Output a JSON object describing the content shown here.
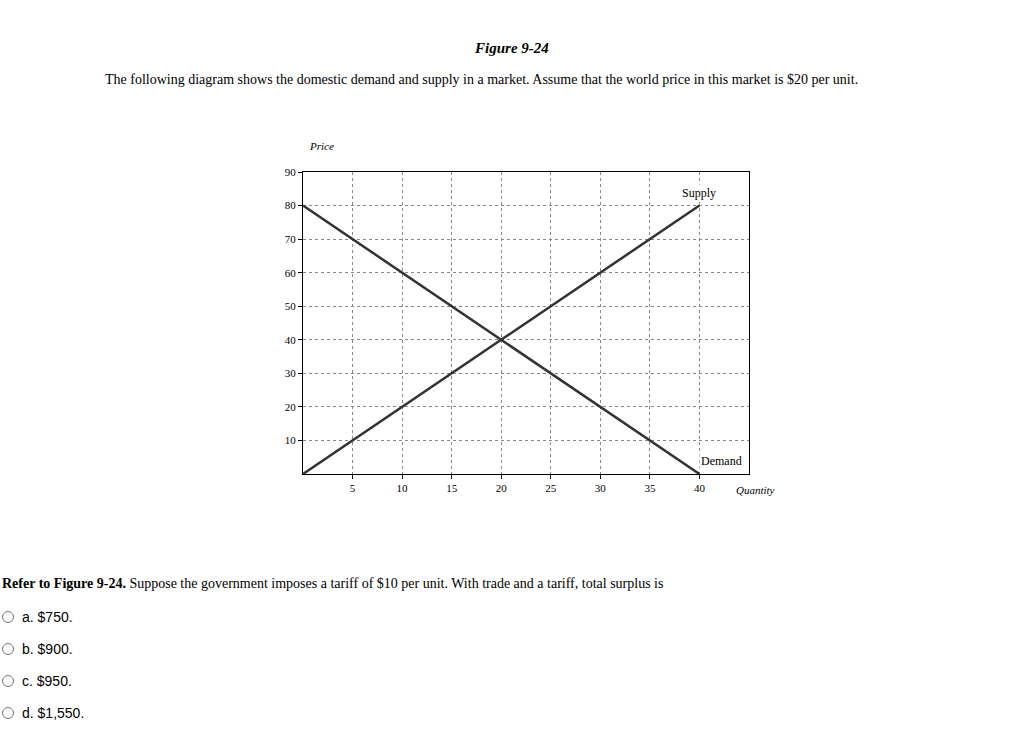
{
  "figure_title": "Figure 9-24",
  "description": "The following diagram shows the domestic demand and supply in a market. Assume that the world price in this market is $20 per unit.",
  "question_lead": "Refer to Figure 9-24.",
  "question": "Suppose the government imposes a tariff of $10 per unit. With trade and a tariff, total surplus is",
  "options": [
    "a. $750.",
    "b. $900.",
    "c. $950.",
    "d. $1,550."
  ],
  "chart_data": {
    "type": "line",
    "x_label": "Quantity",
    "y_label": "Price",
    "series": [
      {
        "name": "Supply",
        "color": "#333333",
        "x": [
          0,
          40
        ],
        "values": [
          0,
          80
        ]
      },
      {
        "name": "Demand",
        "color": "#333333",
        "x": [
          0,
          40
        ],
        "values": [
          80,
          0
        ]
      }
    ],
    "xlim": [
      0,
      45
    ],
    "xticks": [
      5,
      10,
      15,
      20,
      25,
      30,
      35,
      40
    ],
    "ylim": [
      0,
      90
    ],
    "yticks": [
      10,
      20,
      30,
      40,
      50,
      60,
      70,
      80,
      90
    ],
    "grid": true
  }
}
